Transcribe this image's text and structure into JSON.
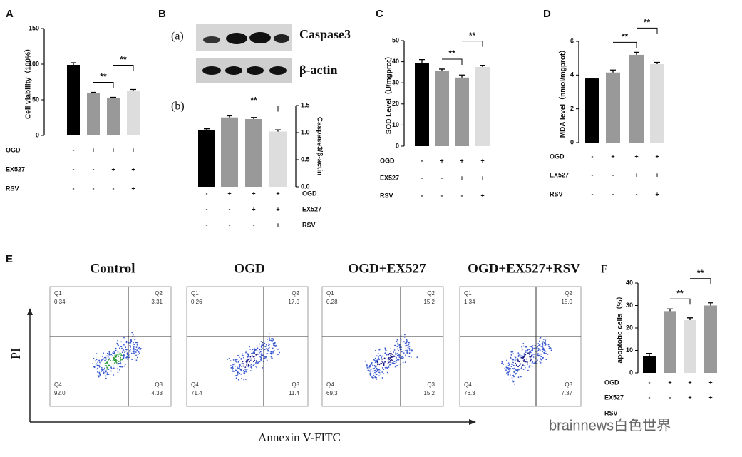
{
  "figure": {
    "panel_labels": [
      "A",
      "B",
      "C",
      "D",
      "E",
      "F"
    ],
    "blot": {
      "sub_a": "(a)",
      "sub_b": "(b)",
      "bands": [
        "Caspase3",
        "β-actin"
      ]
    },
    "flow": {
      "y_label": "PI",
      "x_label": "Annexin V-FITC",
      "panels": [
        {
          "title": "Control",
          "quadrants": [
            {
              "name": "Q1",
              "value": "0.34"
            },
            {
              "name": "Q2",
              "value": "3.31"
            },
            {
              "name": "Q4",
              "value": "92.0"
            },
            {
              "name": "Q3",
              "value": "4.33"
            }
          ]
        },
        {
          "title": "OGD",
          "quadrants": [
            {
              "name": "Q1",
              "value": "0.26"
            },
            {
              "name": "Q2",
              "value": "17.0"
            },
            {
              "name": "Q4",
              "value": "71.4"
            },
            {
              "name": "Q3",
              "value": "11.4"
            }
          ]
        },
        {
          "title": "OGD+EX527",
          "quadrants": [
            {
              "name": "Q1",
              "value": "0.28"
            },
            {
              "name": "Q2",
              "value": "15.2"
            },
            {
              "name": "Q4",
              "value": "69.3"
            },
            {
              "name": "Q3",
              "value": "15.2"
            }
          ]
        },
        {
          "title": "OGD+EX527+RSV",
          "quadrants": [
            {
              "name": "Q1",
              "value": "1.34"
            },
            {
              "name": "Q2",
              "value": "15.0"
            },
            {
              "name": "Q4",
              "value": "76.3"
            },
            {
              "name": "Q3",
              "value": "7.37"
            }
          ]
        }
      ]
    },
    "watermark": "brainnews白色世界"
  },
  "chart_data": [
    {
      "type": "bar",
      "y_label": "Cell viability（100%）",
      "values": [
        99,
        59,
        52,
        63
      ],
      "errors": [
        3,
        1.5,
        1.5,
        1.5
      ],
      "colors": [
        "#000000",
        "#999999",
        "#999999",
        "#dddddd"
      ],
      "ylim": [
        0,
        150
      ],
      "yticks": [
        0,
        50,
        100,
        150
      ],
      "significance": [
        {
          "label": "**",
          "bars": [
            1,
            2
          ]
        },
        {
          "label": "**",
          "bars": [
            2,
            3
          ]
        }
      ],
      "conditions": [
        {
          "name": "OGD",
          "signs": [
            "-",
            "+",
            "+",
            "+"
          ]
        },
        {
          "name": "EX527",
          "signs": [
            "-",
            "-",
            "+",
            "+"
          ]
        },
        {
          "name": "RSV",
          "signs": [
            "-",
            "-",
            "-",
            "+"
          ]
        }
      ]
    },
    {
      "type": "bar",
      "y_label": "Caspase3/β-actin",
      "values": [
        1.05,
        1.28,
        1.25,
        1.02
      ],
      "errors": [
        0.02,
        0.03,
        0.03,
        0.03
      ],
      "colors": [
        "#000000",
        "#999999",
        "#999999",
        "#dddddd"
      ],
      "ylim": [
        0,
        1.5
      ],
      "yticks": [
        {
          "value": 0,
          "label": "0.0"
        },
        {
          "value": 0.5,
          "label": "0.5"
        },
        {
          "value": 1,
          "label": "1.0"
        },
        {
          "value": 1.5,
          "label": "1.5"
        }
      ],
      "significance": [
        {
          "label": "**",
          "bars": [
            1,
            3
          ]
        }
      ],
      "conditions": [
        {
          "name": "OGD",
          "signs": [
            "-",
            "+",
            "+",
            "+"
          ]
        },
        {
          "name": "EX527",
          "signs": [
            "-",
            "-",
            "+",
            "+"
          ]
        },
        {
          "name": "RSV",
          "signs": [
            "-",
            "-",
            "-",
            "+"
          ]
        }
      ]
    },
    {
      "type": "bar",
      "y_label": "SOD Level（U/mgprot）",
      "values": [
        39.5,
        35.5,
        32.5,
        37.5
      ],
      "errors": [
        1.5,
        1,
        1.2,
        0.8
      ],
      "colors": [
        "#000000",
        "#999999",
        "#999999",
        "#dddddd"
      ],
      "ylim": [
        0,
        50
      ],
      "yticks": [
        0,
        10,
        20,
        30,
        40,
        50
      ],
      "significance": [
        {
          "label": "**",
          "bars": [
            1,
            2
          ]
        },
        {
          "label": "**",
          "bars": [
            2,
            3
          ]
        }
      ],
      "conditions": [
        {
          "name": "OGD",
          "signs": [
            "-",
            "+",
            "+",
            "+"
          ]
        },
        {
          "name": "EX527",
          "signs": [
            "-",
            "-",
            "+",
            "+"
          ]
        },
        {
          "name": "RSV",
          "signs": [
            "-",
            "-",
            "-",
            "+"
          ]
        }
      ]
    },
    {
      "type": "bar",
      "y_label": "MDA level（nmol/mgprot）",
      "values": [
        3.8,
        4.15,
        5.2,
        4.65
      ],
      "errors": [
        0,
        0.15,
        0.15,
        0.1
      ],
      "colors": [
        "#000000",
        "#999999",
        "#999999",
        "#dddddd"
      ],
      "ylim": [
        0,
        6
      ],
      "yticks": [
        0,
        2,
        4,
        6
      ],
      "significance": [
        {
          "label": "**",
          "bars": [
            1,
            2
          ]
        },
        {
          "label": "**",
          "bars": [
            2,
            3
          ]
        }
      ],
      "conditions": [
        {
          "name": "OGD",
          "signs": [
            "-",
            "+",
            "+",
            "+"
          ]
        },
        {
          "name": "EX527",
          "signs": [
            "-",
            "-",
            "+",
            "+"
          ]
        },
        {
          "name": "RSV",
          "signs": [
            "-",
            "-",
            "-",
            "+"
          ]
        }
      ]
    },
    {
      "type": "bar",
      "y_label": "apoptotic cells（%）",
      "values": [
        7.5,
        27.5,
        23.5,
        30
      ],
      "errors": [
        1.2,
        1,
        1,
        1.2
      ],
      "colors": [
        "#000000",
        "#999999",
        "#dddddd",
        "#999999"
      ],
      "ylim": [
        0,
        40
      ],
      "yticks": [
        0,
        10,
        20,
        30,
        40
      ],
      "significance": [
        {
          "label": "**",
          "bars": [
            1,
            2
          ]
        },
        {
          "label": "**",
          "bars": [
            2,
            3
          ]
        }
      ],
      "conditions": [
        {
          "name": "OGD",
          "signs": [
            "-",
            "+",
            "+",
            "+"
          ]
        },
        {
          "name": "EX527",
          "signs": [
            "-",
            "-",
            "+",
            "+"
          ]
        },
        {
          "name": "RSV",
          "signs": []
        }
      ]
    }
  ]
}
